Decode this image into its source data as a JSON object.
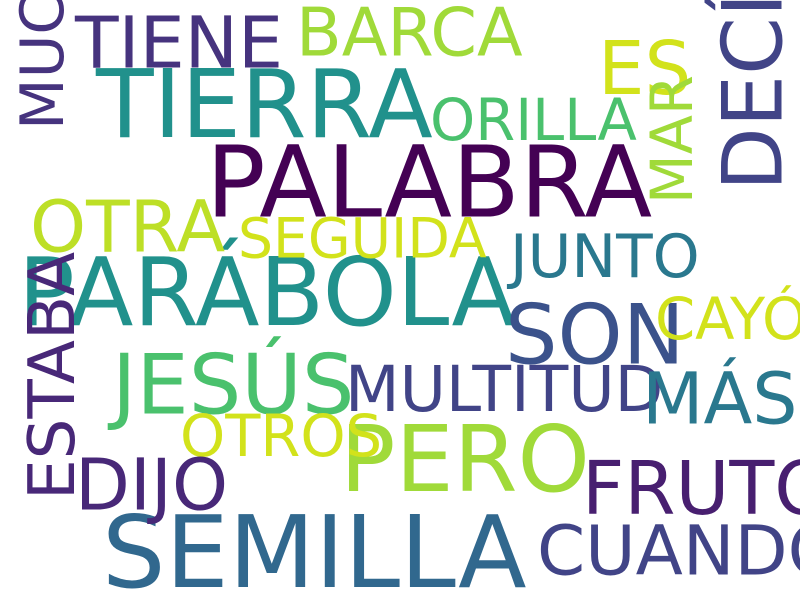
{
  "words": [
    {
      "id": "palabra",
      "text": "PALABRA",
      "color": "#440154"
    },
    {
      "id": "tierra",
      "text": "TIERRA",
      "color": "#21918c"
    },
    {
      "id": "parabola",
      "text": "PARÁBOLA",
      "color": "#21918c"
    },
    {
      "id": "semilla",
      "text": "SEMILLA",
      "color": "#31688e"
    },
    {
      "id": "decia",
      "text": "DECÍA",
      "color": "#414487"
    },
    {
      "id": "pero",
      "text": "PERO",
      "color": "#a0da39"
    },
    {
      "id": "jesus",
      "text": "JESÚS",
      "color": "#4ac16d"
    },
    {
      "id": "son",
      "text": "SON",
      "color": "#3b528b"
    },
    {
      "id": "tiene",
      "text": "TIENE",
      "color": "#46337e"
    },
    {
      "id": "barca",
      "text": "BARCA",
      "color": "#a0da39"
    },
    {
      "id": "es",
      "text": "ES",
      "color": "#d2e21b"
    },
    {
      "id": "orilla",
      "text": "ORILLA",
      "color": "#4ac16d"
    },
    {
      "id": "mucha",
      "text": "MUCHA",
      "color": "#46337e"
    },
    {
      "id": "otra",
      "text": "OTRA",
      "color": "#bddf26"
    },
    {
      "id": "seguida",
      "text": "SEGUIDA",
      "color": "#d2e21b"
    },
    {
      "id": "mar",
      "text": "MAR",
      "color": "#a0da39"
    },
    {
      "id": "junto",
      "text": "JUNTO",
      "color": "#2a788e"
    },
    {
      "id": "cayo",
      "text": "CAYÓ",
      "color": "#d2e21b"
    },
    {
      "id": "multitud",
      "text": "MULTITUD",
      "color": "#414487"
    },
    {
      "id": "mas",
      "text": "MÁS",
      "color": "#2a788e"
    },
    {
      "id": "estaba",
      "text": "ESTABA",
      "color": "#482878"
    },
    {
      "id": "otros",
      "text": "OTROS",
      "color": "#d2e21b"
    },
    {
      "id": "dijo",
      "text": "DIJO",
      "color": "#482878"
    },
    {
      "id": "fruto",
      "text": "FRUTO",
      "color": "#481f70"
    },
    {
      "id": "cuando",
      "text": "CUANDO",
      "color": "#414487"
    }
  ]
}
